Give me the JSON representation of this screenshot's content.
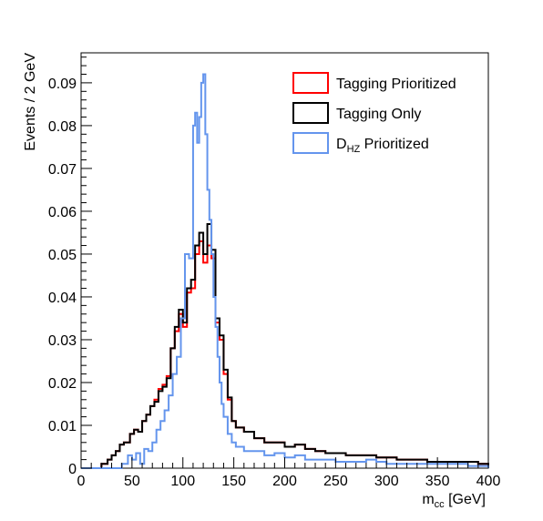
{
  "chart_data": {
    "type": "histogram",
    "xlabel": "m",
    "xlabel_sub": "cc",
    "xlabel_unit": " [GeV]",
    "ylabel": "Events / 2 GeV",
    "xlim": [
      0,
      400
    ],
    "ylim": [
      0,
      0.097
    ],
    "xticks": [
      0,
      50,
      100,
      150,
      200,
      250,
      300,
      350,
      400
    ],
    "xtick_labels": [
      "0",
      "50",
      "100",
      "150",
      "200",
      "250",
      "300",
      "350",
      "400"
    ],
    "yticks": [
      0,
      0.01,
      0.02,
      0.03,
      0.04,
      0.05,
      0.06,
      0.07,
      0.08,
      0.09
    ],
    "ytick_labels": [
      "0",
      "0.01",
      "0.02",
      "0.03",
      "0.04",
      "0.05",
      "0.06",
      "0.07",
      "0.08",
      "0.09"
    ],
    "bin_width": 2,
    "grid": false,
    "legend_position": "top-right",
    "series": [
      {
        "name": "Tagging Prioritized",
        "label_main": "Tagging Prioritized",
        "label_sub": "",
        "label_rest": "",
        "color": "#ff0000",
        "x": [
          0,
          20,
          26,
          30,
          34,
          38,
          42,
          48,
          52,
          56,
          60,
          64,
          68,
          72,
          76,
          80,
          84,
          88,
          92,
          96,
          100,
          104,
          108,
          112,
          116,
          120,
          124,
          128,
          132,
          136,
          140,
          144,
          148,
          152,
          160,
          170,
          180,
          190,
          200,
          210,
          220,
          230,
          240,
          250,
          260,
          270,
          280,
          290,
          300,
          310,
          320,
          330,
          340,
          350,
          360,
          370,
          380,
          390,
          400
        ],
        "values": [
          0.0,
          0.001,
          0.002,
          0.003,
          0.004,
          0.0055,
          0.006,
          0.008,
          0.009,
          0.0085,
          0.011,
          0.0125,
          0.0145,
          0.016,
          0.0185,
          0.0195,
          0.0215,
          0.028,
          0.032,
          0.036,
          0.033,
          0.041,
          0.042,
          0.05,
          0.053,
          0.048,
          0.052,
          0.049,
          0.034,
          0.03,
          0.022,
          0.016,
          0.011,
          0.0095,
          0.0085,
          0.007,
          0.006,
          0.006,
          0.005,
          0.0055,
          0.0045,
          0.004,
          0.0035,
          0.0035,
          0.003,
          0.003,
          0.003,
          0.0025,
          0.0025,
          0.002,
          0.002,
          0.002,
          0.0015,
          0.0015,
          0.0015,
          0.0015,
          0.0015,
          0.001,
          0.0
        ]
      },
      {
        "name": "Tagging Only",
        "label_main": "Tagging Only",
        "label_sub": "",
        "label_rest": "",
        "color": "#000000",
        "x": [
          0,
          20,
          26,
          30,
          34,
          38,
          42,
          48,
          52,
          56,
          60,
          64,
          68,
          72,
          76,
          80,
          84,
          88,
          92,
          96,
          100,
          104,
          108,
          112,
          116,
          120,
          124,
          128,
          132,
          136,
          140,
          144,
          148,
          152,
          160,
          170,
          180,
          190,
          200,
          210,
          220,
          230,
          240,
          250,
          260,
          270,
          280,
          290,
          300,
          310,
          320,
          330,
          340,
          350,
          360,
          370,
          380,
          390,
          400
        ],
        "values": [
          0.0,
          0.001,
          0.002,
          0.003,
          0.004,
          0.0055,
          0.006,
          0.008,
          0.009,
          0.0085,
          0.011,
          0.0125,
          0.0145,
          0.0155,
          0.018,
          0.019,
          0.021,
          0.028,
          0.033,
          0.037,
          0.034,
          0.042,
          0.044,
          0.052,
          0.055,
          0.05,
          0.057,
          0.051,
          0.035,
          0.031,
          0.023,
          0.0165,
          0.011,
          0.0095,
          0.0085,
          0.007,
          0.006,
          0.006,
          0.005,
          0.0055,
          0.0045,
          0.004,
          0.0035,
          0.0035,
          0.003,
          0.003,
          0.003,
          0.0025,
          0.0025,
          0.002,
          0.002,
          0.002,
          0.0015,
          0.0015,
          0.0015,
          0.0015,
          0.0015,
          0.001,
          0.0
        ]
      },
      {
        "name": "D_HZ Prioritized",
        "label_main": "D",
        "label_sub": "HZ",
        "label_rest": " Prioritized",
        "color": "#6495ed",
        "x": [
          0,
          20,
          40,
          46,
          50,
          54,
          58,
          62,
          66,
          70,
          74,
          78,
          82,
          86,
          90,
          94,
          98,
          102,
          106,
          110,
          112,
          114,
          116,
          118,
          120,
          122,
          124,
          126,
          128,
          130,
          132,
          134,
          136,
          138,
          140,
          144,
          148,
          152,
          160,
          170,
          180,
          190,
          200,
          210,
          220,
          230,
          240,
          250,
          260,
          270,
          280,
          290,
          300,
          310,
          320,
          330,
          340,
          350,
          360,
          370,
          380,
          390,
          400
        ],
        "values": [
          0.0,
          0.0,
          0.001,
          0.003,
          0.002,
          0.0035,
          0.001,
          0.0045,
          0.004,
          0.006,
          0.009,
          0.011,
          0.0135,
          0.017,
          0.022,
          0.026,
          0.035,
          0.05,
          0.049,
          0.08,
          0.083,
          0.076,
          0.082,
          0.09,
          0.092,
          0.078,
          0.065,
          0.058,
          0.05,
          0.04,
          0.033,
          0.026,
          0.02,
          0.015,
          0.012,
          0.008,
          0.006,
          0.005,
          0.004,
          0.004,
          0.003,
          0.0035,
          0.0025,
          0.003,
          0.002,
          0.002,
          0.002,
          0.0015,
          0.0015,
          0.0015,
          0.002,
          0.0015,
          0.001,
          0.001,
          0.001,
          0.001,
          0.001,
          0.001,
          0.001,
          0.001,
          0.0005,
          0.0005,
          0.0
        ]
      }
    ]
  }
}
